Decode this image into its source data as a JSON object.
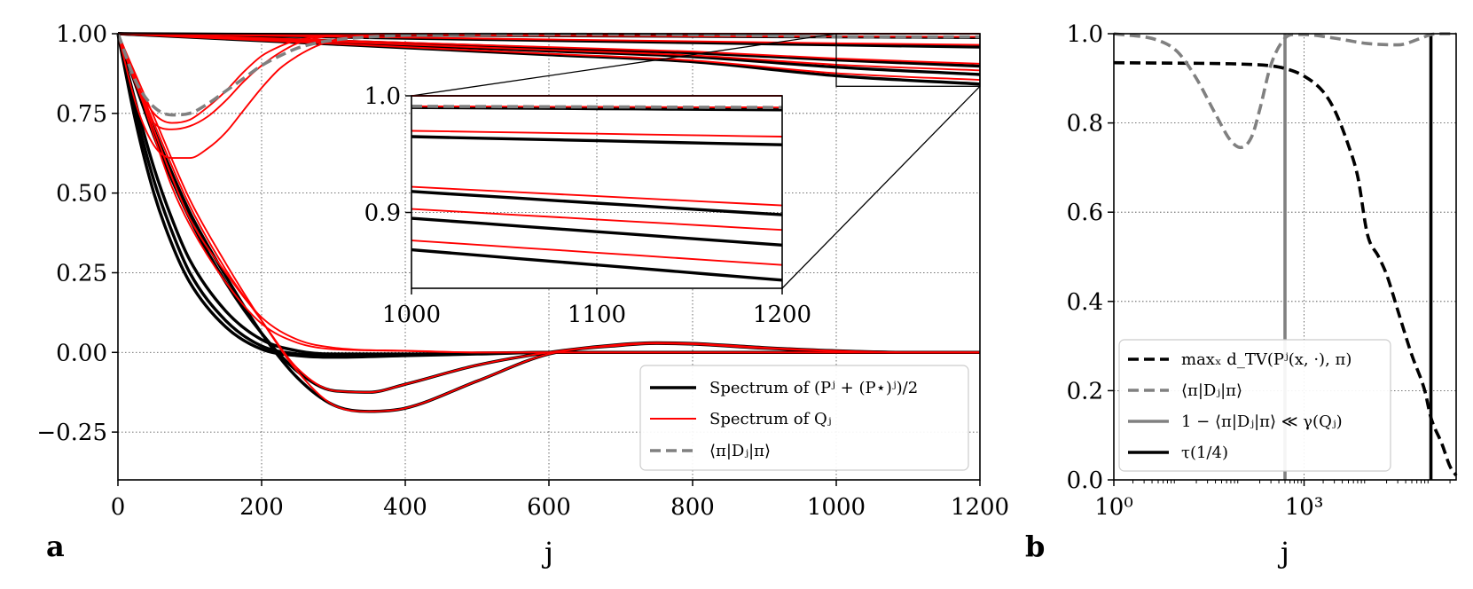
{
  "panel_labels": {
    "a": "a",
    "b": "b"
  },
  "colors": {
    "black": "#000000",
    "red": "#ff0000",
    "gray": "#808080"
  },
  "chart_data": [
    {
      "type": "line",
      "panel": "a",
      "xlabel": "j",
      "ylabel": "",
      "xlim": [
        0,
        1200
      ],
      "ylim": [
        -0.4,
        1.0
      ],
      "xticks": [
        0,
        200,
        400,
        600,
        800,
        1000,
        1200
      ],
      "xtick_labels": [
        "0",
        "200",
        "400",
        "600",
        "800",
        "1000",
        "1200"
      ],
      "yticks": [
        -0.25,
        0,
        0.25,
        0.5,
        0.75,
        1.0
      ],
      "ytick_labels": [
        "−0.25",
        "0.00",
        "0.25",
        "0.50",
        "0.75",
        "1.00"
      ],
      "grid": true,
      "legend_position": "lower-right",
      "legend": [
        {
          "label": "Spectrum of (Pʲ + (P⋆)ʲ)/2",
          "color": "#000000",
          "style": "solid-thick"
        },
        {
          "label": "Spectrum of Qⱼ",
          "color": "#ff0000",
          "style": "solid-thin"
        },
        {
          "label": "⟨π|Dⱼ|π⟩",
          "color": "#808080",
          "style": "dashed"
        }
      ],
      "series": [
        {
          "color": "#000000",
          "style": "solid-thick",
          "x": [
            0,
            200,
            400,
            600,
            800,
            1000,
            1200
          ],
          "y": [
            1.0,
            0.998,
            0.996,
            0.994,
            0.992,
            0.99,
            0.988
          ]
        },
        {
          "color": "#000000",
          "style": "solid-thick",
          "x": [
            0,
            200,
            400,
            600,
            800,
            1000,
            1200
          ],
          "y": [
            1.0,
            0.993,
            0.986,
            0.979,
            0.972,
            0.965,
            0.958
          ]
        },
        {
          "color": "#000000",
          "style": "solid-thick",
          "x": [
            0,
            200,
            400,
            600,
            800,
            1000,
            1200
          ],
          "y": [
            1.0,
            0.985,
            0.97,
            0.955,
            0.94,
            0.918,
            0.898
          ]
        },
        {
          "color": "#000000",
          "style": "solid-thick",
          "x": [
            0,
            200,
            400,
            600,
            800,
            1000,
            1200
          ],
          "y": [
            1.0,
            0.982,
            0.964,
            0.946,
            0.928,
            0.895,
            0.872
          ]
        },
        {
          "color": "#000000",
          "style": "solid-thick",
          "x": [
            0,
            200,
            400,
            600,
            800,
            1000,
            1200
          ],
          "y": [
            1.0,
            0.978,
            0.956,
            0.934,
            0.912,
            0.868,
            0.842
          ]
        },
        {
          "color": "#ff0000",
          "style": "solid-thin",
          "x": [
            0,
            200,
            400,
            600,
            800,
            1000,
            1200
          ],
          "y": [
            1.0,
            0.998,
            0.996,
            0.994,
            0.992,
            0.991,
            0.99
          ]
        },
        {
          "color": "#ff0000",
          "style": "solid-thin",
          "x": [
            0,
            200,
            400,
            600,
            800,
            1000,
            1200
          ],
          "y": [
            1.0,
            0.994,
            0.988,
            0.982,
            0.976,
            0.97,
            0.965
          ]
        },
        {
          "color": "#ff0000",
          "style": "solid-thin",
          "x": [
            0,
            200,
            400,
            600,
            800,
            1000,
            1200
          ],
          "y": [
            1.0,
            0.986,
            0.972,
            0.958,
            0.944,
            0.922,
            0.906
          ]
        },
        {
          "color": "#ff0000",
          "style": "solid-thin",
          "x": [
            0,
            200,
            400,
            600,
            800,
            1000,
            1200
          ],
          "y": [
            1.0,
            0.983,
            0.966,
            0.949,
            0.932,
            0.903,
            0.885
          ]
        },
        {
          "color": "#ff0000",
          "style": "solid-thin",
          "x": [
            0,
            200,
            400,
            600,
            800,
            1000,
            1200
          ],
          "y": [
            1.0,
            0.979,
            0.958,
            0.937,
            0.916,
            0.876,
            0.855
          ]
        },
        {
          "color": "#000000",
          "style": "solid-thick",
          "x": [
            0,
            25,
            50,
            75,
            100,
            150,
            200,
            250,
            300,
            400,
            500,
            600,
            1200
          ],
          "y": [
            1.0,
            0.72,
            0.5,
            0.34,
            0.22,
            0.08,
            0.01,
            -0.01,
            -0.015,
            -0.01,
            -0.005,
            0.0,
            0.0
          ]
        },
        {
          "color": "#000000",
          "style": "solid-thick",
          "x": [
            0,
            25,
            50,
            75,
            100,
            150,
            200,
            250,
            300,
            400,
            500,
            600,
            1200
          ],
          "y": [
            1.0,
            0.75,
            0.54,
            0.38,
            0.25,
            0.1,
            0.02,
            -0.005,
            -0.01,
            -0.008,
            -0.004,
            0.0,
            0.0
          ]
        },
        {
          "color": "#000000",
          "style": "solid-thick",
          "x": [
            0,
            25,
            50,
            75,
            100,
            150,
            200,
            250,
            300,
            400,
            500,
            600,
            1200
          ],
          "y": [
            1.0,
            0.78,
            0.58,
            0.42,
            0.29,
            0.13,
            0.04,
            0.005,
            -0.005,
            -0.005,
            -0.002,
            0.0,
            0.0
          ]
        },
        {
          "color": "#000000",
          "style": "solid-thick",
          "x": [
            0,
            50,
            100,
            150,
            200,
            250,
            300,
            350,
            400,
            500,
            600,
            700,
            750,
            800,
            900,
            1000,
            1100,
            1200
          ],
          "y": [
            1.0,
            0.68,
            0.42,
            0.22,
            0.06,
            -0.06,
            -0.12,
            -0.125,
            -0.1,
            -0.04,
            0.0,
            0.025,
            0.03,
            0.028,
            0.015,
            0.005,
            0.0,
            0.0
          ]
        },
        {
          "color": "#000000",
          "style": "solid-thick",
          "x": [
            0,
            50,
            100,
            150,
            200,
            250,
            300,
            350,
            400,
            500,
            600,
            700,
            750,
            800,
            900,
            1000,
            1100,
            1200
          ],
          "y": [
            1.0,
            0.7,
            0.44,
            0.24,
            0.06,
            -0.08,
            -0.165,
            -0.185,
            -0.175,
            -0.09,
            -0.005,
            0.022,
            0.028,
            0.026,
            0.013,
            0.004,
            0.0,
            0.0
          ]
        },
        {
          "color": "#ff0000",
          "style": "solid-thin",
          "x": [
            0,
            25,
            50,
            75,
            100,
            150,
            200,
            250,
            300,
            400,
            500,
            600,
            1200
          ],
          "y": [
            1.0,
            0.85,
            0.68,
            0.52,
            0.4,
            0.22,
            0.09,
            0.03,
            0.01,
            0.005,
            0.0,
            0.0,
            0.0
          ]
        },
        {
          "color": "#ff0000",
          "style": "solid-thin",
          "x": [
            0,
            25,
            50,
            75,
            100,
            150,
            200,
            250,
            300,
            400,
            500,
            600,
            1200
          ],
          "y": [
            1.0,
            0.86,
            0.7,
            0.55,
            0.42,
            0.25,
            0.11,
            0.04,
            0.015,
            0.005,
            0.0,
            0.0,
            0.0
          ]
        },
        {
          "color": "#ff0000",
          "style": "solid-thin",
          "x": [
            0,
            50,
            100,
            150,
            200,
            250,
            300,
            350,
            400,
            500,
            600,
            700,
            750,
            800,
            900,
            1000,
            1100,
            1200
          ],
          "y": [
            1.0,
            0.72,
            0.46,
            0.26,
            0.1,
            -0.05,
            -0.12,
            -0.125,
            -0.1,
            -0.04,
            0.0,
            0.025,
            0.03,
            0.028,
            0.015,
            0.005,
            0.0,
            0.0
          ]
        },
        {
          "color": "#ff0000",
          "style": "solid-thin",
          "x": [
            0,
            50,
            100,
            150,
            200,
            250,
            300,
            350,
            400,
            500,
            600,
            700,
            750,
            800,
            900,
            1000,
            1100,
            1200
          ],
          "y": [
            1.0,
            0.74,
            0.48,
            0.28,
            0.1,
            -0.06,
            -0.165,
            -0.185,
            -0.175,
            -0.09,
            -0.005,
            0.022,
            0.028,
            0.026,
            0.013,
            0.004,
            0.0,
            0.0
          ]
        },
        {
          "color": "#ff0000",
          "style": "solid-thin",
          "x": [
            0,
            25,
            50,
            75,
            100,
            125,
            150,
            175,
            200,
            225,
            250,
            300,
            350,
            400,
            1200
          ],
          "y": [
            1.0,
            0.85,
            0.75,
            0.72,
            0.73,
            0.77,
            0.82,
            0.88,
            0.93,
            0.96,
            0.98,
            0.995,
            0.999,
            1.0,
            1.0
          ]
        },
        {
          "color": "#ff0000",
          "style": "solid-thin",
          "x": [
            0,
            25,
            50,
            75,
            100,
            125,
            150,
            175,
            200,
            225,
            250,
            275,
            300,
            350,
            400,
            1200
          ],
          "y": [
            1.0,
            0.84,
            0.72,
            0.7,
            0.71,
            0.74,
            0.79,
            0.85,
            0.9,
            0.94,
            0.97,
            0.985,
            0.995,
            0.999,
            1.0,
            1.0
          ]
        },
        {
          "color": "#ff0000",
          "style": "solid-thin",
          "x": [
            0,
            25,
            50,
            75,
            100,
            125,
            150,
            175,
            200,
            225,
            250,
            275,
            300,
            325,
            350,
            400,
            1200
          ],
          "y": [
            1.0,
            0.78,
            0.65,
            0.61,
            0.61,
            0.64,
            0.69,
            0.76,
            0.83,
            0.89,
            0.93,
            0.96,
            0.98,
            0.99,
            0.995,
            1.0,
            1.0
          ]
        },
        {
          "color": "#808080",
          "style": "dashed",
          "x": [
            0,
            25,
            50,
            75,
            100,
            125,
            150,
            175,
            200,
            225,
            250,
            275,
            300,
            350,
            400,
            500,
            600,
            800,
            1000,
            1200
          ],
          "y": [
            1.0,
            0.85,
            0.77,
            0.745,
            0.75,
            0.78,
            0.82,
            0.86,
            0.9,
            0.93,
            0.955,
            0.97,
            0.98,
            0.99,
            0.995,
            0.998,
            0.998,
            0.997,
            0.991,
            0.99
          ]
        }
      ],
      "inset": {
        "xlim": [
          1000,
          1200
        ],
        "ylim": [
          0.835,
          1.0
        ],
        "xticks": [
          1000,
          1100,
          1200
        ],
        "xtick_labels": [
          "1000",
          "1100",
          "1200"
        ],
        "yticks": [
          0.9,
          1.0
        ],
        "ytick_labels": [
          "0.9",
          "1.0"
        ],
        "zoom_region": {
          "x": [
            1000,
            1200
          ],
          "y": [
            0.835,
            1.0
          ]
        }
      }
    },
    {
      "type": "line",
      "panel": "b",
      "xlabel": "j",
      "ylabel": "",
      "xscale": "log",
      "xlim": [
        1,
        250000
      ],
      "ylim": [
        0.0,
        1.0
      ],
      "xticks": [
        1,
        1000
      ],
      "xtick_labels": [
        "10⁰",
        "10³"
      ],
      "yticks": [
        0.0,
        0.2,
        0.4,
        0.6,
        0.8,
        1.0
      ],
      "ytick_labels": [
        "0.0",
        "0.2",
        "0.4",
        "0.6",
        "0.8",
        "1.0"
      ],
      "grid": true,
      "legend_position": "lower-left",
      "legend": [
        {
          "label": "maxₓ d_TV(Pʲ(x, ·), π)",
          "color": "#000000",
          "style": "dashed"
        },
        {
          "label": "⟨π|Dⱼ|π⟩",
          "color": "#808080",
          "style": "dashed"
        },
        {
          "label": "1 − ⟨π|Dⱼ|π⟩ ≪ γ(Qⱼ)",
          "color": "#808080",
          "style": "solid"
        },
        {
          "label": "τ(1/4)",
          "color": "#000000",
          "style": "solid"
        }
      ],
      "series": [
        {
          "color": "#000000",
          "style": "dashed",
          "x": [
            1,
            10,
            50,
            100,
            300,
            500,
            1000,
            2000,
            3000,
            5000,
            7000,
            10000,
            15000,
            20000,
            30000,
            50000,
            80000,
            100000,
            150000,
            200000,
            250000
          ],
          "y": [
            0.935,
            0.934,
            0.933,
            0.932,
            0.928,
            0.922,
            0.905,
            0.87,
            0.83,
            0.75,
            0.68,
            0.55,
            0.5,
            0.46,
            0.38,
            0.28,
            0.2,
            0.14,
            0.08,
            0.03,
            0.01
          ]
        },
        {
          "color": "#808080",
          "style": "dashed",
          "x": [
            1,
            5,
            10,
            20,
            40,
            70,
            100,
            150,
            200,
            300,
            500,
            700,
            1000,
            3000,
            10000,
            30000,
            70000,
            100000,
            150000,
            250000
          ],
          "y": [
            1.0,
            0.985,
            0.96,
            0.9,
            0.82,
            0.76,
            0.745,
            0.77,
            0.83,
            0.93,
            0.99,
            0.998,
            0.998,
            0.99,
            0.978,
            0.975,
            0.99,
            0.998,
            1.0,
            1.0
          ]
        }
      ],
      "vlines": [
        {
          "x": 500,
          "color": "#808080",
          "style": "solid"
        },
        {
          "x": 100000,
          "color": "#000000",
          "style": "solid"
        }
      ]
    }
  ]
}
